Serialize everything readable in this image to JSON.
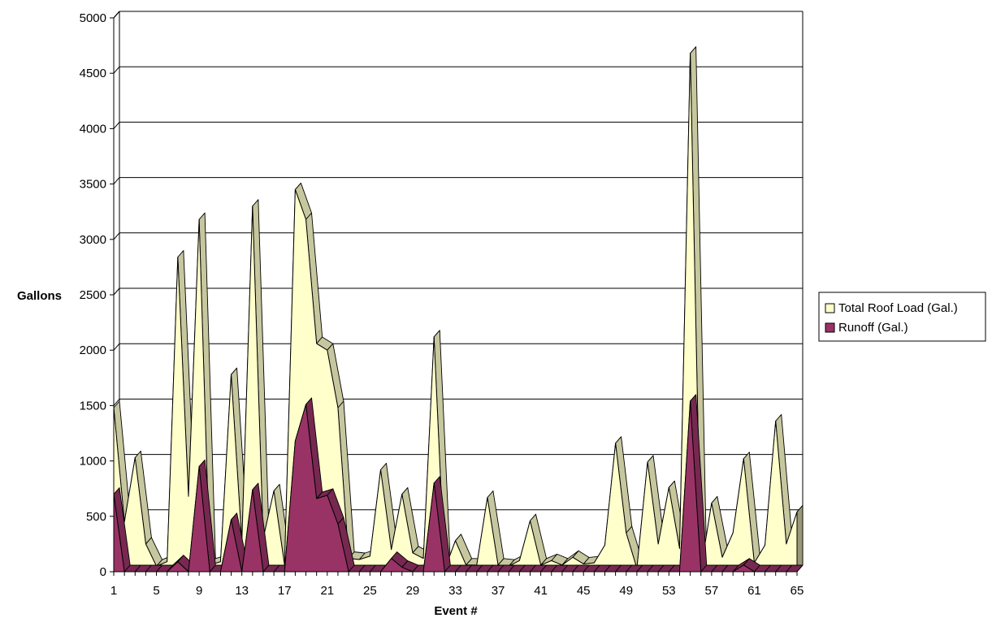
{
  "chart_data": {
    "type": "area",
    "title": "",
    "xlabel": "Event #",
    "ylabel": "Gallons",
    "x": [
      1,
      2,
      3,
      4,
      5,
      6,
      7,
      8,
      9,
      10,
      11,
      12,
      13,
      14,
      15,
      16,
      17,
      18,
      19,
      20,
      21,
      22,
      23,
      24,
      25,
      26,
      27,
      28,
      29,
      30,
      31,
      32,
      33,
      34,
      35,
      36,
      37,
      38,
      39,
      40,
      41,
      42,
      43,
      44,
      45,
      46,
      47,
      48,
      49,
      50,
      51,
      52,
      53,
      54,
      55,
      56,
      57,
      58,
      59,
      60,
      61,
      62,
      63,
      64,
      65
    ],
    "x_tick_labels": [
      "1",
      "5",
      "9",
      "13",
      "17",
      "21",
      "25",
      "29",
      "33",
      "37",
      "41",
      "45",
      "49",
      "53",
      "57",
      "61",
      "65"
    ],
    "y_tick_labels": [
      "0",
      "500",
      "1000",
      "1500",
      "2000",
      "2500",
      "3000",
      "3500",
      "4000",
      "4500",
      "5000"
    ],
    "ylim": [
      0,
      5000
    ],
    "grid": true,
    "three_d": true,
    "legend_position": "right",
    "series": [
      {
        "name": "Total Roof Load (Gal.)",
        "color": "#FFFFCC",
        "values": [
          1480,
          450,
          1030,
          250,
          50,
          90,
          2840,
          680,
          3180,
          60,
          90,
          1780,
          270,
          3300,
          300,
          730,
          60,
          3450,
          3180,
          2060,
          2000,
          1480,
          120,
          110,
          140,
          920,
          200,
          700,
          170,
          120,
          2120,
          20,
          280,
          60,
          60,
          670,
          60,
          50,
          100,
          460,
          60,
          100,
          60,
          130,
          70,
          80,
          240,
          1160,
          350,
          30,
          990,
          250,
          760,
          210,
          4680,
          20,
          620,
          130,
          350,
          1020,
          80,
          240,
          1360,
          250,
          540
        ]
      },
      {
        "name": "Runoff (Gal.)",
        "color": "#993366",
        "values": [
          700,
          0,
          0,
          0,
          0,
          0,
          90,
          0,
          950,
          0,
          0,
          470,
          0,
          740,
          0,
          0,
          0,
          1180,
          1510,
          660,
          690,
          430,
          0,
          0,
          0,
          0,
          120,
          40,
          0,
          0,
          800,
          0,
          0,
          0,
          0,
          0,
          0,
          0,
          0,
          0,
          0,
          0,
          0,
          0,
          0,
          0,
          0,
          0,
          0,
          0,
          0,
          0,
          0,
          0,
          1540,
          0,
          0,
          0,
          0,
          60,
          0,
          0,
          0,
          0,
          0
        ]
      }
    ]
  }
}
